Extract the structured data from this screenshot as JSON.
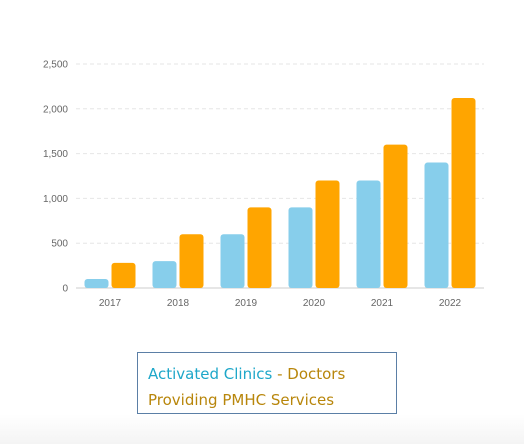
{
  "chart_data": {
    "type": "bar",
    "categories": [
      "2017",
      "2018",
      "2019",
      "2020",
      "2021",
      "2022"
    ],
    "series": [
      {
        "values": [
          100,
          300,
          600,
          900,
          1200,
          1400
        ],
        "color": "#87ceeb"
      },
      {
        "values": [
          280,
          600,
          900,
          1200,
          1600,
          2120
        ],
        "color": "#ffa500"
      }
    ],
    "ylim": [
      0,
      2500
    ],
    "yticks": [
      0,
      500,
      1000,
      1500,
      2000,
      2500
    ],
    "ytick_labels": [
      "0",
      "500",
      "1,000",
      "1,500",
      "2,000",
      "2,500"
    ],
    "grid": true,
    "legend": {
      "line1_part1": "Activated Clinics",
      "line1_sep": " - ",
      "line1_part2": "Doctors",
      "line2": "Providing PMHC Services",
      "color_clinics": "#1ea7c9",
      "color_doctors": "#b8860b"
    }
  }
}
